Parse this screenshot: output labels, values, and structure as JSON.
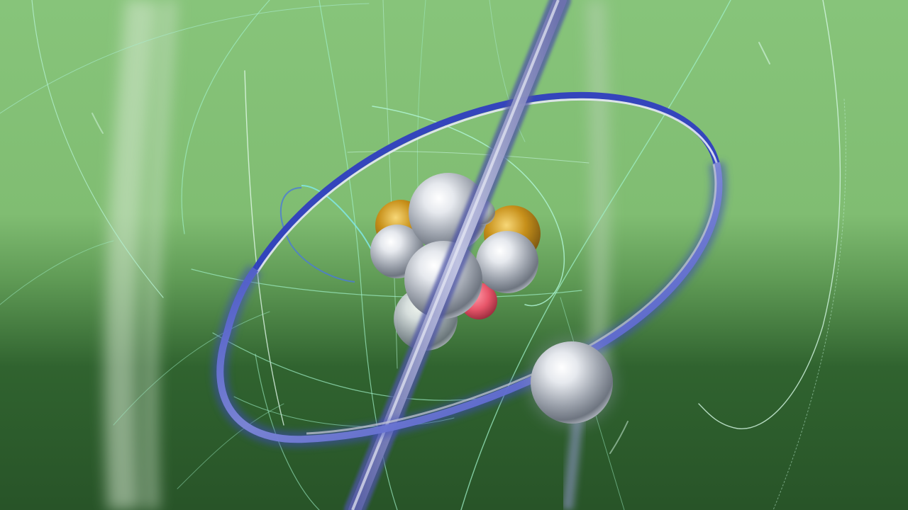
{
  "scene": {
    "subject": "atom-model",
    "colors": {
      "background_top": "#87c47a",
      "background_mid": "#6fa862",
      "background_bottom": "#2b5a2d",
      "orbit_blue": "#3a49c4",
      "orbit_silver": "#c9ccd6",
      "thread_green": "#9ff0c8",
      "thread_cyan": "#7fe6e0",
      "sphere_silver": "#d7dbe2",
      "sphere_gold": "#c9931a",
      "sphere_red": "#e8566a"
    },
    "nucleus_particle_count": 9,
    "electron_count": 1,
    "orbit_ring_count": 2
  }
}
